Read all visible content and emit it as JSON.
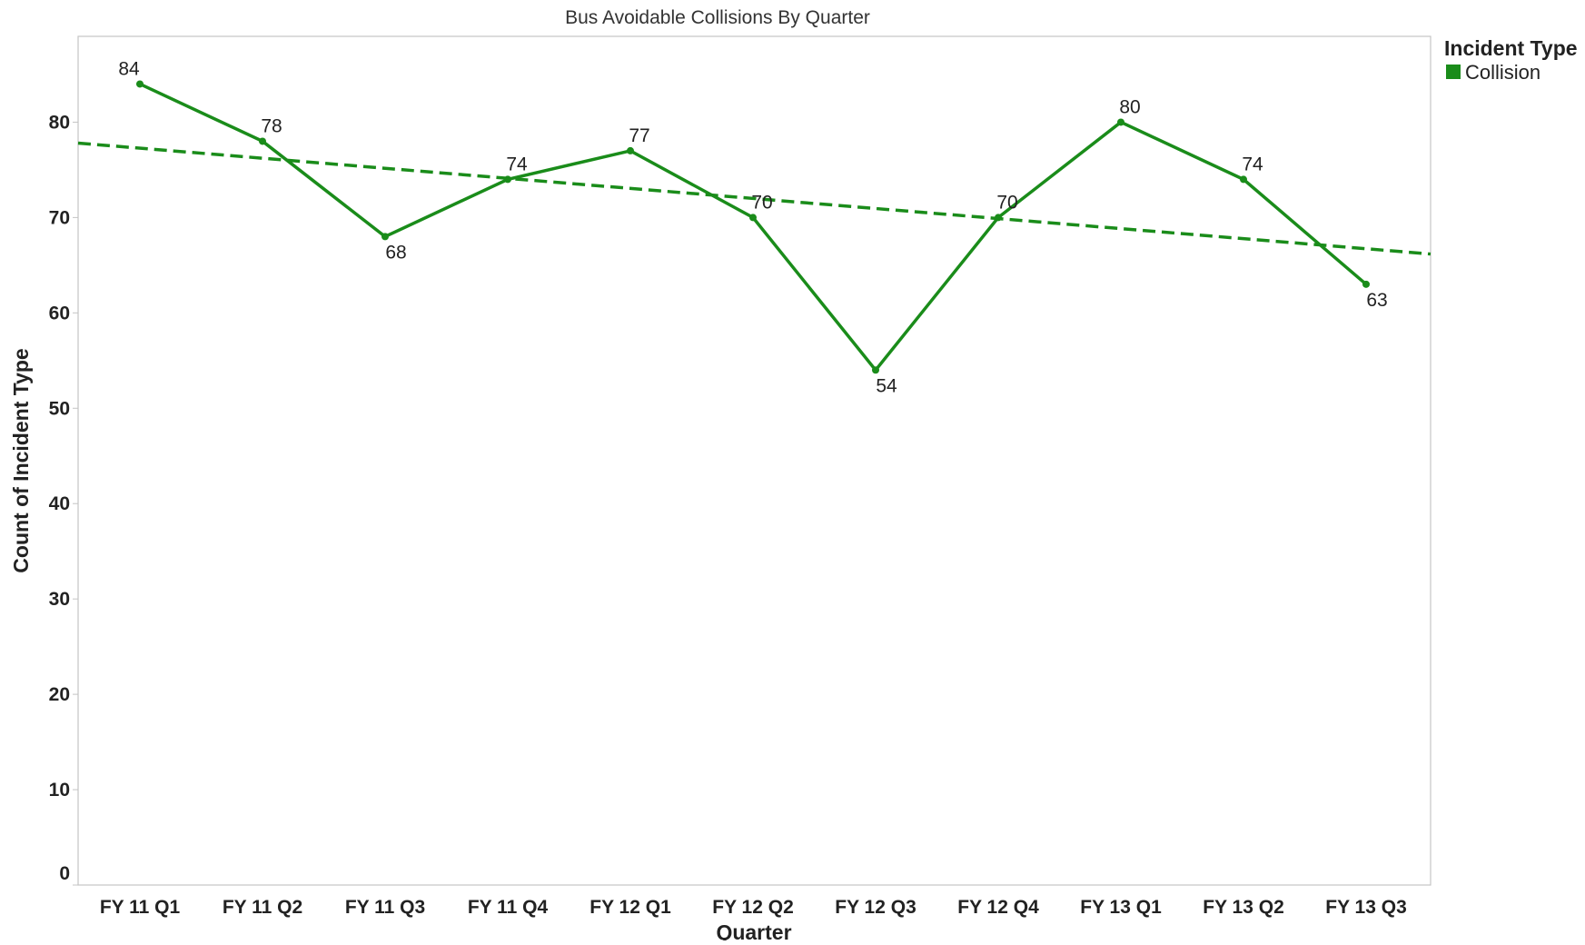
{
  "chart_data": {
    "type": "line",
    "title": "Bus Avoidable Collisions By Quarter",
    "xlabel": "Quarter",
    "ylabel": "Count of Incident Type",
    "categories": [
      "FY 11 Q1",
      "FY 11 Q2",
      "FY 11 Q3",
      "FY 11 Q4",
      "FY 12 Q1",
      "FY 12 Q2",
      "FY 12 Q3",
      "FY 12 Q4",
      "FY 13 Q1",
      "FY 13 Q2",
      "FY 13 Q3"
    ],
    "series": [
      {
        "name": "Collision",
        "values": [
          84,
          78,
          68,
          74,
          77,
          70,
          54,
          70,
          80,
          74,
          63
        ],
        "color": "#1a8c1a"
      }
    ],
    "trend_line": {
      "style": "dashed",
      "color": "#1a8c1a"
    },
    "ylim": [
      0,
      89
    ],
    "yticks": [
      0,
      10,
      20,
      30,
      40,
      50,
      60,
      70,
      80
    ],
    "grid": false,
    "legend": {
      "title": "Incident Type",
      "placement": "top-right",
      "entries": [
        "Collision"
      ]
    },
    "data_labels": true
  },
  "colors": {
    "series": "#1a8c1a",
    "axis": "#bdbdbd",
    "text": "#222222"
  }
}
